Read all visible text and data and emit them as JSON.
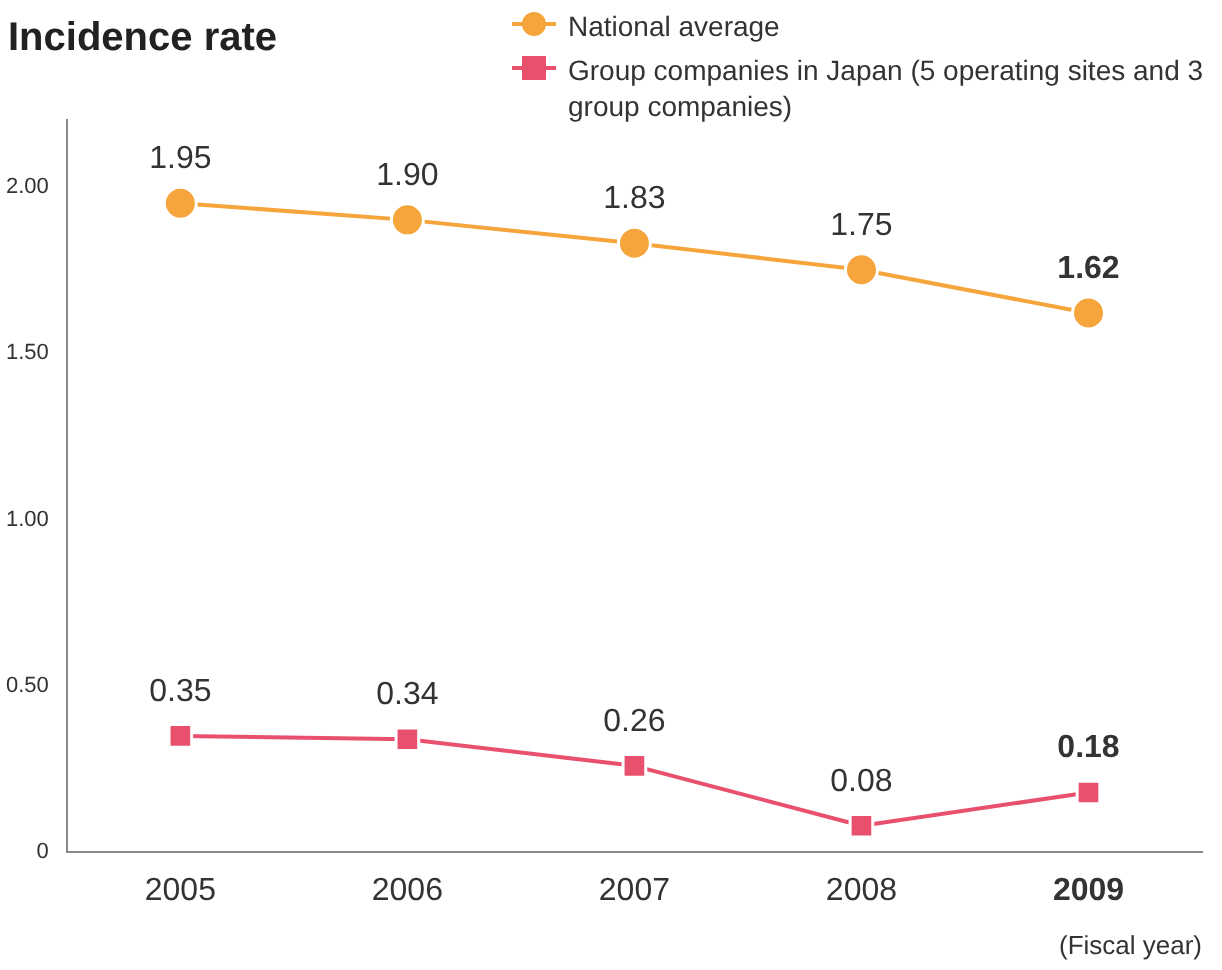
{
  "chart_data": {
    "type": "line",
    "title": "Incidence rate",
    "xlabel": "(Fiscal year)",
    "categories": [
      "2005",
      "2006",
      "2007",
      "2008",
      "2009"
    ],
    "series": [
      {
        "name": "National average",
        "color": "#f5a53c",
        "marker": "circle",
        "values": [
          1.95,
          1.9,
          1.83,
          1.75,
          1.62
        ],
        "value_labels": [
          "1.95",
          "1.90",
          "1.83",
          "1.75",
          "1.62"
        ]
      },
      {
        "name": "Group companies in Japan (5 operating sites and 3 group companies)",
        "color": "#e8506e",
        "marker": "square",
        "values": [
          0.35,
          0.34,
          0.26,
          0.08,
          0.18
        ],
        "value_labels": [
          "0.35",
          "0.34",
          "0.26",
          "0.08",
          "0.18"
        ]
      }
    ],
    "ylim": [
      0,
      2.2
    ],
    "yticks": [
      {
        "value": 0,
        "label": "0"
      },
      {
        "value": 0.5,
        "label": "0.50"
      },
      {
        "value": 1,
        "label": "1.00"
      },
      {
        "value": 1.5,
        "label": "1.50"
      },
      {
        "value": 2,
        "label": "2.00"
      }
    ],
    "grid": false,
    "legend": "top right",
    "line_style": "solid"
  }
}
